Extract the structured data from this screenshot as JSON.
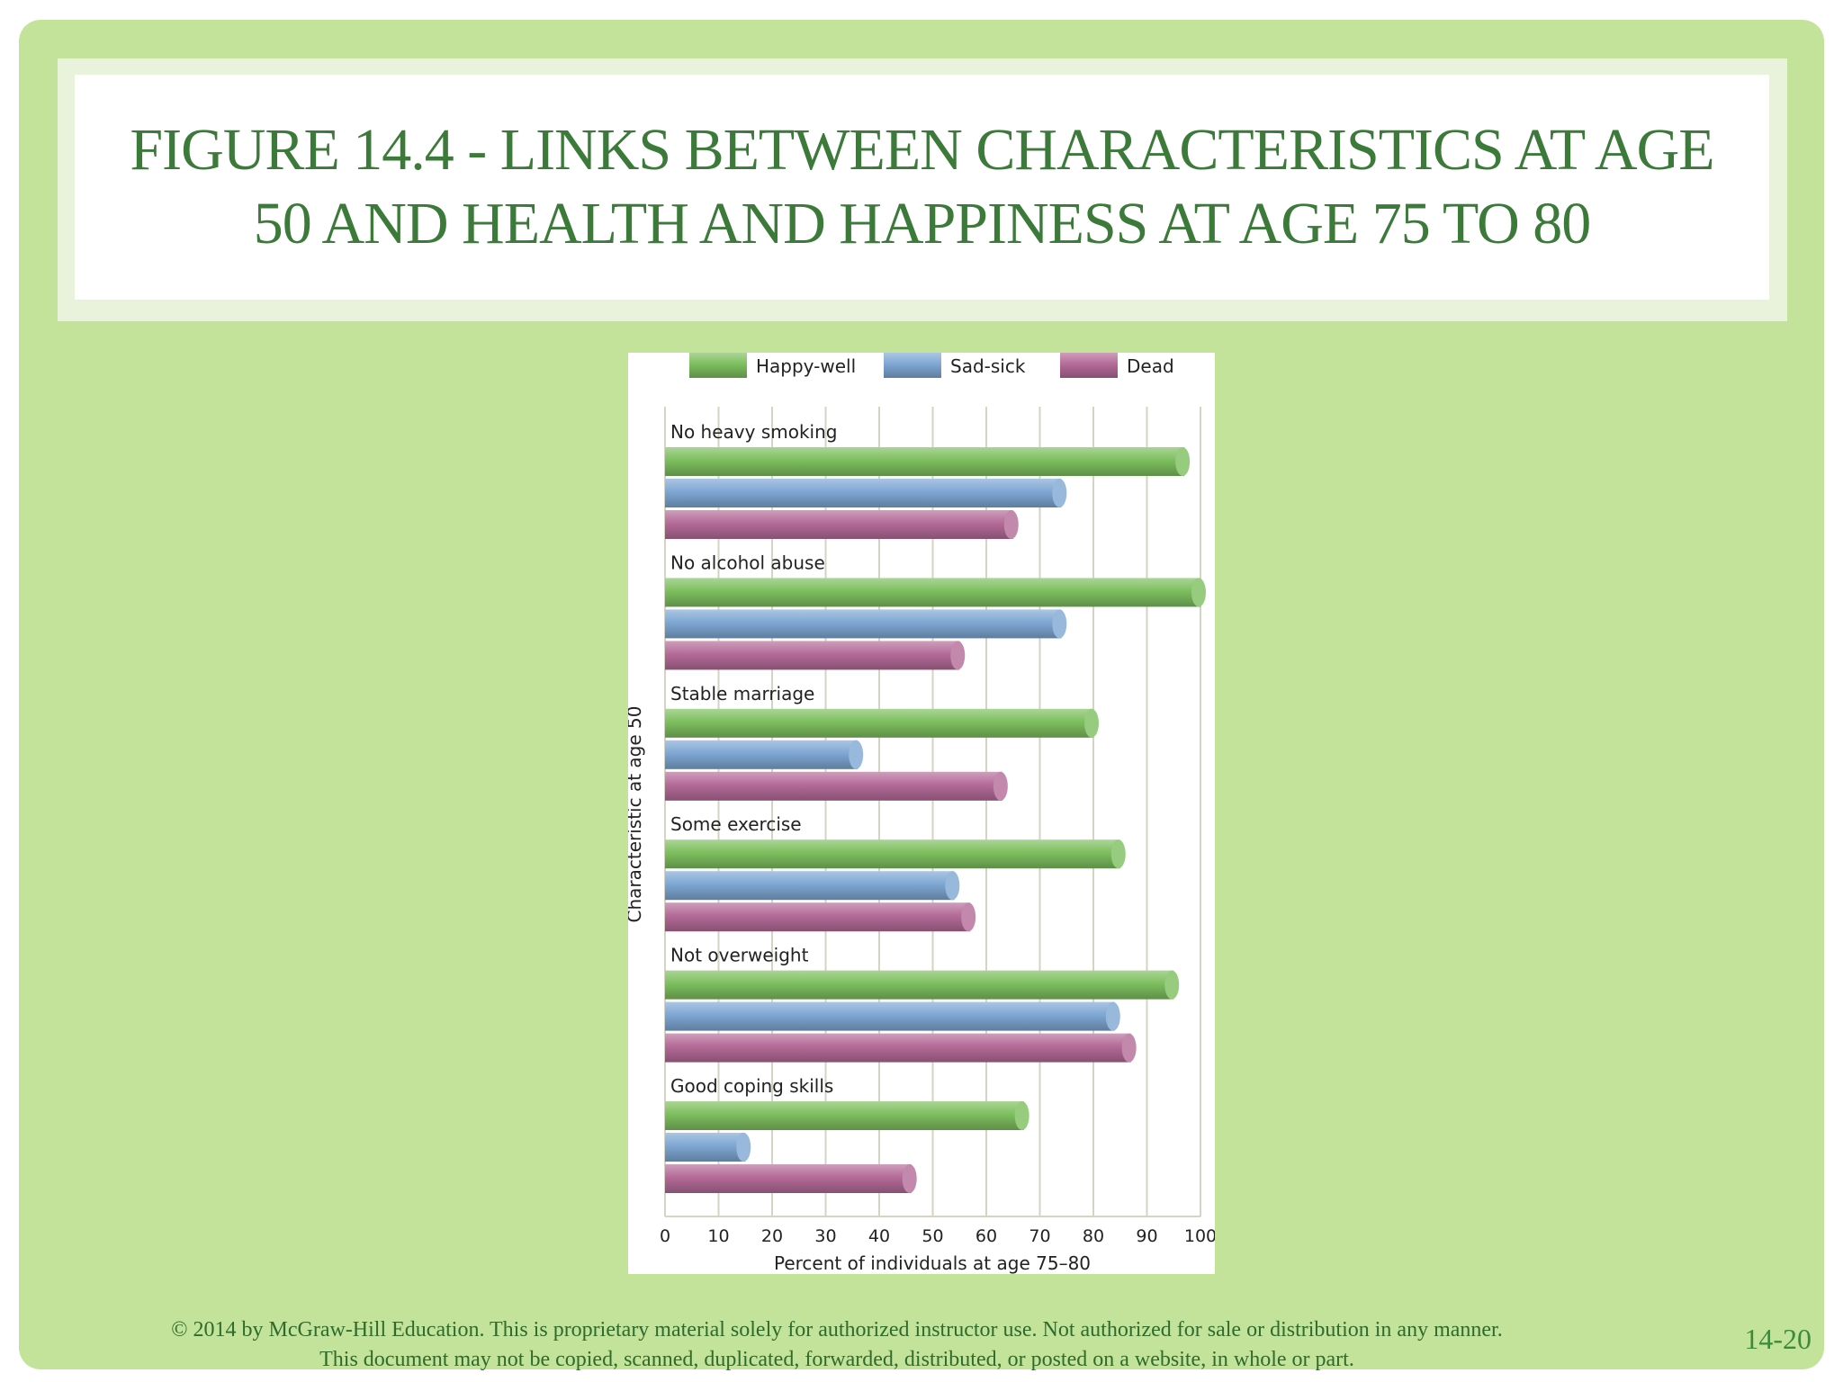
{
  "slide": {
    "title": "FIGURE 14.4 - LINKS BETWEEN CHARACTERISTICS AT AGE 50 AND HEALTH AND HAPPINESS AT AGE 75 TO 80",
    "footer_line1": "© 2014 by McGraw-Hill Education.  This is proprietary material solely for authorized instructor use. Not authorized for sale or distribution in any manner.",
    "footer_line2": "This document may not be copied, scanned, duplicated, forwarded, distributed, or posted on a website, in whole or part.",
    "page_number": "14-20"
  },
  "colors": {
    "background": "#c3e39b",
    "title": "#3c7a3a",
    "happy_well": "#7dbf5e",
    "sad_sick": "#7ea7d3",
    "dead": "#b46b98"
  },
  "chart_data": {
    "type": "bar",
    "orientation": "horizontal",
    "categories": [
      "No heavy smoking",
      "No alcohol abuse",
      "Stable marriage",
      "Some exercise",
      "Not overweight",
      "Good coping skills"
    ],
    "series": [
      {
        "name": "Happy-well",
        "color": "#7dbf5e",
        "values": [
          97,
          100,
          80,
          85,
          95,
          67
        ]
      },
      {
        "name": "Sad-sick",
        "color": "#7ea7d3",
        "values": [
          74,
          74,
          36,
          54,
          84,
          15
        ]
      },
      {
        "name": "Dead",
        "color": "#b46b98",
        "values": [
          65,
          55,
          63,
          57,
          87,
          46
        ]
      }
    ],
    "xlabel": "Percent of individuals at age 75–80",
    "ylabel": "Characteristic at age 50",
    "xlim": [
      0,
      100
    ],
    "xticks": [
      "0",
      "10",
      "20",
      "30",
      "40",
      "50",
      "60",
      "70",
      "80",
      "90",
      "100"
    ],
    "grid": true,
    "legend_position": "top"
  }
}
